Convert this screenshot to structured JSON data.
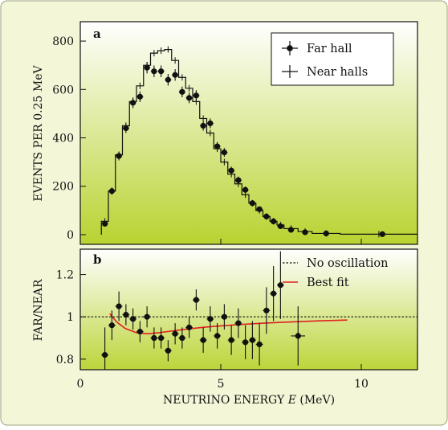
{
  "chart_data": [
    {
      "panel": "a",
      "type": "line",
      "ylabel": "EVENTS PER 0.25 MeV",
      "ylim": [
        -40,
        880
      ],
      "xlim": [
        0,
        12
      ],
      "yticks": [
        0,
        200,
        400,
        600,
        800
      ],
      "legend_position": "top-right",
      "grid": false,
      "series": [
        {
          "name": "Far hall",
          "style": "points-with-errorbars",
          "x": [
            0.875,
            1.125,
            1.375,
            1.625,
            1.875,
            2.125,
            2.375,
            2.625,
            2.875,
            3.125,
            3.375,
            3.625,
            3.875,
            4.125,
            4.375,
            4.625,
            4.875,
            5.125,
            5.375,
            5.625,
            5.875,
            6.125,
            6.375,
            6.625,
            6.875,
            7.125,
            7.5,
            8.0,
            8.75,
            10.75
          ],
          "y": [
            45,
            180,
            325,
            440,
            545,
            570,
            690,
            675,
            675,
            640,
            660,
            590,
            565,
            575,
            450,
            460,
            365,
            340,
            265,
            225,
            185,
            130,
            105,
            75,
            55,
            35,
            20,
            10,
            5,
            2
          ],
          "err": [
            10,
            15,
            18,
            20,
            22,
            22,
            24,
            24,
            24,
            24,
            24,
            22,
            22,
            22,
            20,
            20,
            18,
            18,
            16,
            15,
            14,
            12,
            10,
            9,
            8,
            6,
            5,
            4,
            3,
            2
          ]
        },
        {
          "name": "Near halls",
          "style": "step-histogram",
          "edges": [
            0.75,
            1.0,
            1.25,
            1.5,
            1.75,
            2.0,
            2.25,
            2.5,
            2.75,
            3.0,
            3.25,
            3.5,
            3.75,
            4.0,
            4.25,
            4.5,
            4.75,
            5.0,
            5.25,
            5.5,
            5.75,
            6.0,
            6.25,
            6.5,
            6.75,
            7.0,
            7.25,
            7.75,
            8.25,
            9.25,
            12.0
          ],
          "values": [
            55,
            180,
            330,
            450,
            550,
            615,
            700,
            750,
            760,
            765,
            720,
            650,
            605,
            550,
            480,
            420,
            355,
            300,
            250,
            210,
            165,
            130,
            100,
            75,
            55,
            40,
            25,
            13,
            5,
            2
          ]
        }
      ]
    },
    {
      "panel": "b",
      "type": "scatter",
      "xlabel": "NEUTRINO ENERGY E (MeV)",
      "ylabel": "FAR/NEAR",
      "xlim": [
        0,
        12
      ],
      "ylim": [
        0.75,
        1.32
      ],
      "xticks": [
        0,
        5,
        10
      ],
      "yticks": [
        0.8,
        1,
        1.2
      ],
      "legend_position": "top-right",
      "grid": false,
      "series": [
        {
          "name": "",
          "style": "points-with-errorbars",
          "x": [
            0.875,
            1.125,
            1.375,
            1.625,
            1.875,
            2.125,
            2.375,
            2.625,
            2.875,
            3.125,
            3.375,
            3.625,
            3.875,
            4.125,
            4.375,
            4.625,
            4.875,
            5.125,
            5.375,
            5.625,
            5.875,
            6.125,
            6.375,
            6.625,
            6.875,
            7.125,
            7.75
          ],
          "y": [
            0.82,
            0.96,
            1.05,
            1.01,
            0.99,
            0.93,
            1.0,
            0.9,
            0.9,
            0.84,
            0.92,
            0.9,
            0.95,
            1.08,
            0.89,
            0.99,
            0.91,
            1.0,
            0.89,
            0.97,
            0.88,
            0.89,
            0.87,
            1.03,
            1.11,
            1.15,
            0.91
          ],
          "err": [
            0.13,
            0.07,
            0.07,
            0.05,
            0.05,
            0.05,
            0.05,
            0.05,
            0.05,
            0.05,
            0.05,
            0.05,
            0.05,
            0.05,
            0.06,
            0.06,
            0.06,
            0.06,
            0.07,
            0.07,
            0.08,
            0.09,
            0.1,
            0.11,
            0.13,
            0.16,
            0.14
          ],
          "xerr": [
            0.125,
            0.125,
            0.125,
            0.125,
            0.125,
            0.125,
            0.125,
            0.125,
            0.125,
            0.125,
            0.125,
            0.125,
            0.125,
            0.125,
            0.125,
            0.125,
            0.125,
            0.125,
            0.125,
            0.125,
            0.125,
            0.125,
            0.125,
            0.125,
            0.125,
            0.125,
            0.25
          ]
        },
        {
          "name": "No oscillation",
          "style": "dashed-line",
          "x": [
            0,
            12
          ],
          "y": [
            1.0,
            1.0
          ],
          "color": "#111111"
        },
        {
          "name": "Best fit",
          "style": "line",
          "x": [
            1.05,
            1.3,
            1.6,
            2.0,
            2.4,
            2.8,
            3.2,
            3.8,
            4.5,
            5.5,
            6.5,
            7.5,
            8.5,
            9.5
          ],
          "y": [
            1.015,
            0.975,
            0.945,
            0.925,
            0.92,
            0.925,
            0.932,
            0.942,
            0.952,
            0.962,
            0.97,
            0.976,
            0.981,
            0.985
          ],
          "color": "#e02020"
        }
      ]
    }
  ],
  "labels": {
    "panel_a": "a",
    "panel_b": "b",
    "legend_a": [
      "Far hall",
      "Near halls"
    ],
    "legend_b": [
      "No oscillation",
      "Best fit"
    ],
    "xlabel_prefix": "NEUTRINO ENERGY ",
    "xlabel_var": "E",
    "xlabel_unit": " (MeV)",
    "ylabel_a": "EVENTS PER 0.25 MeV",
    "ylabel_b": "FAR/NEAR"
  },
  "colors": {
    "frame_bg": "#f3f7d8",
    "plot_top": "#ffffff",
    "plot_bottom": "#b8d330",
    "best_fit": "#e02020",
    "ink": "#111111"
  }
}
